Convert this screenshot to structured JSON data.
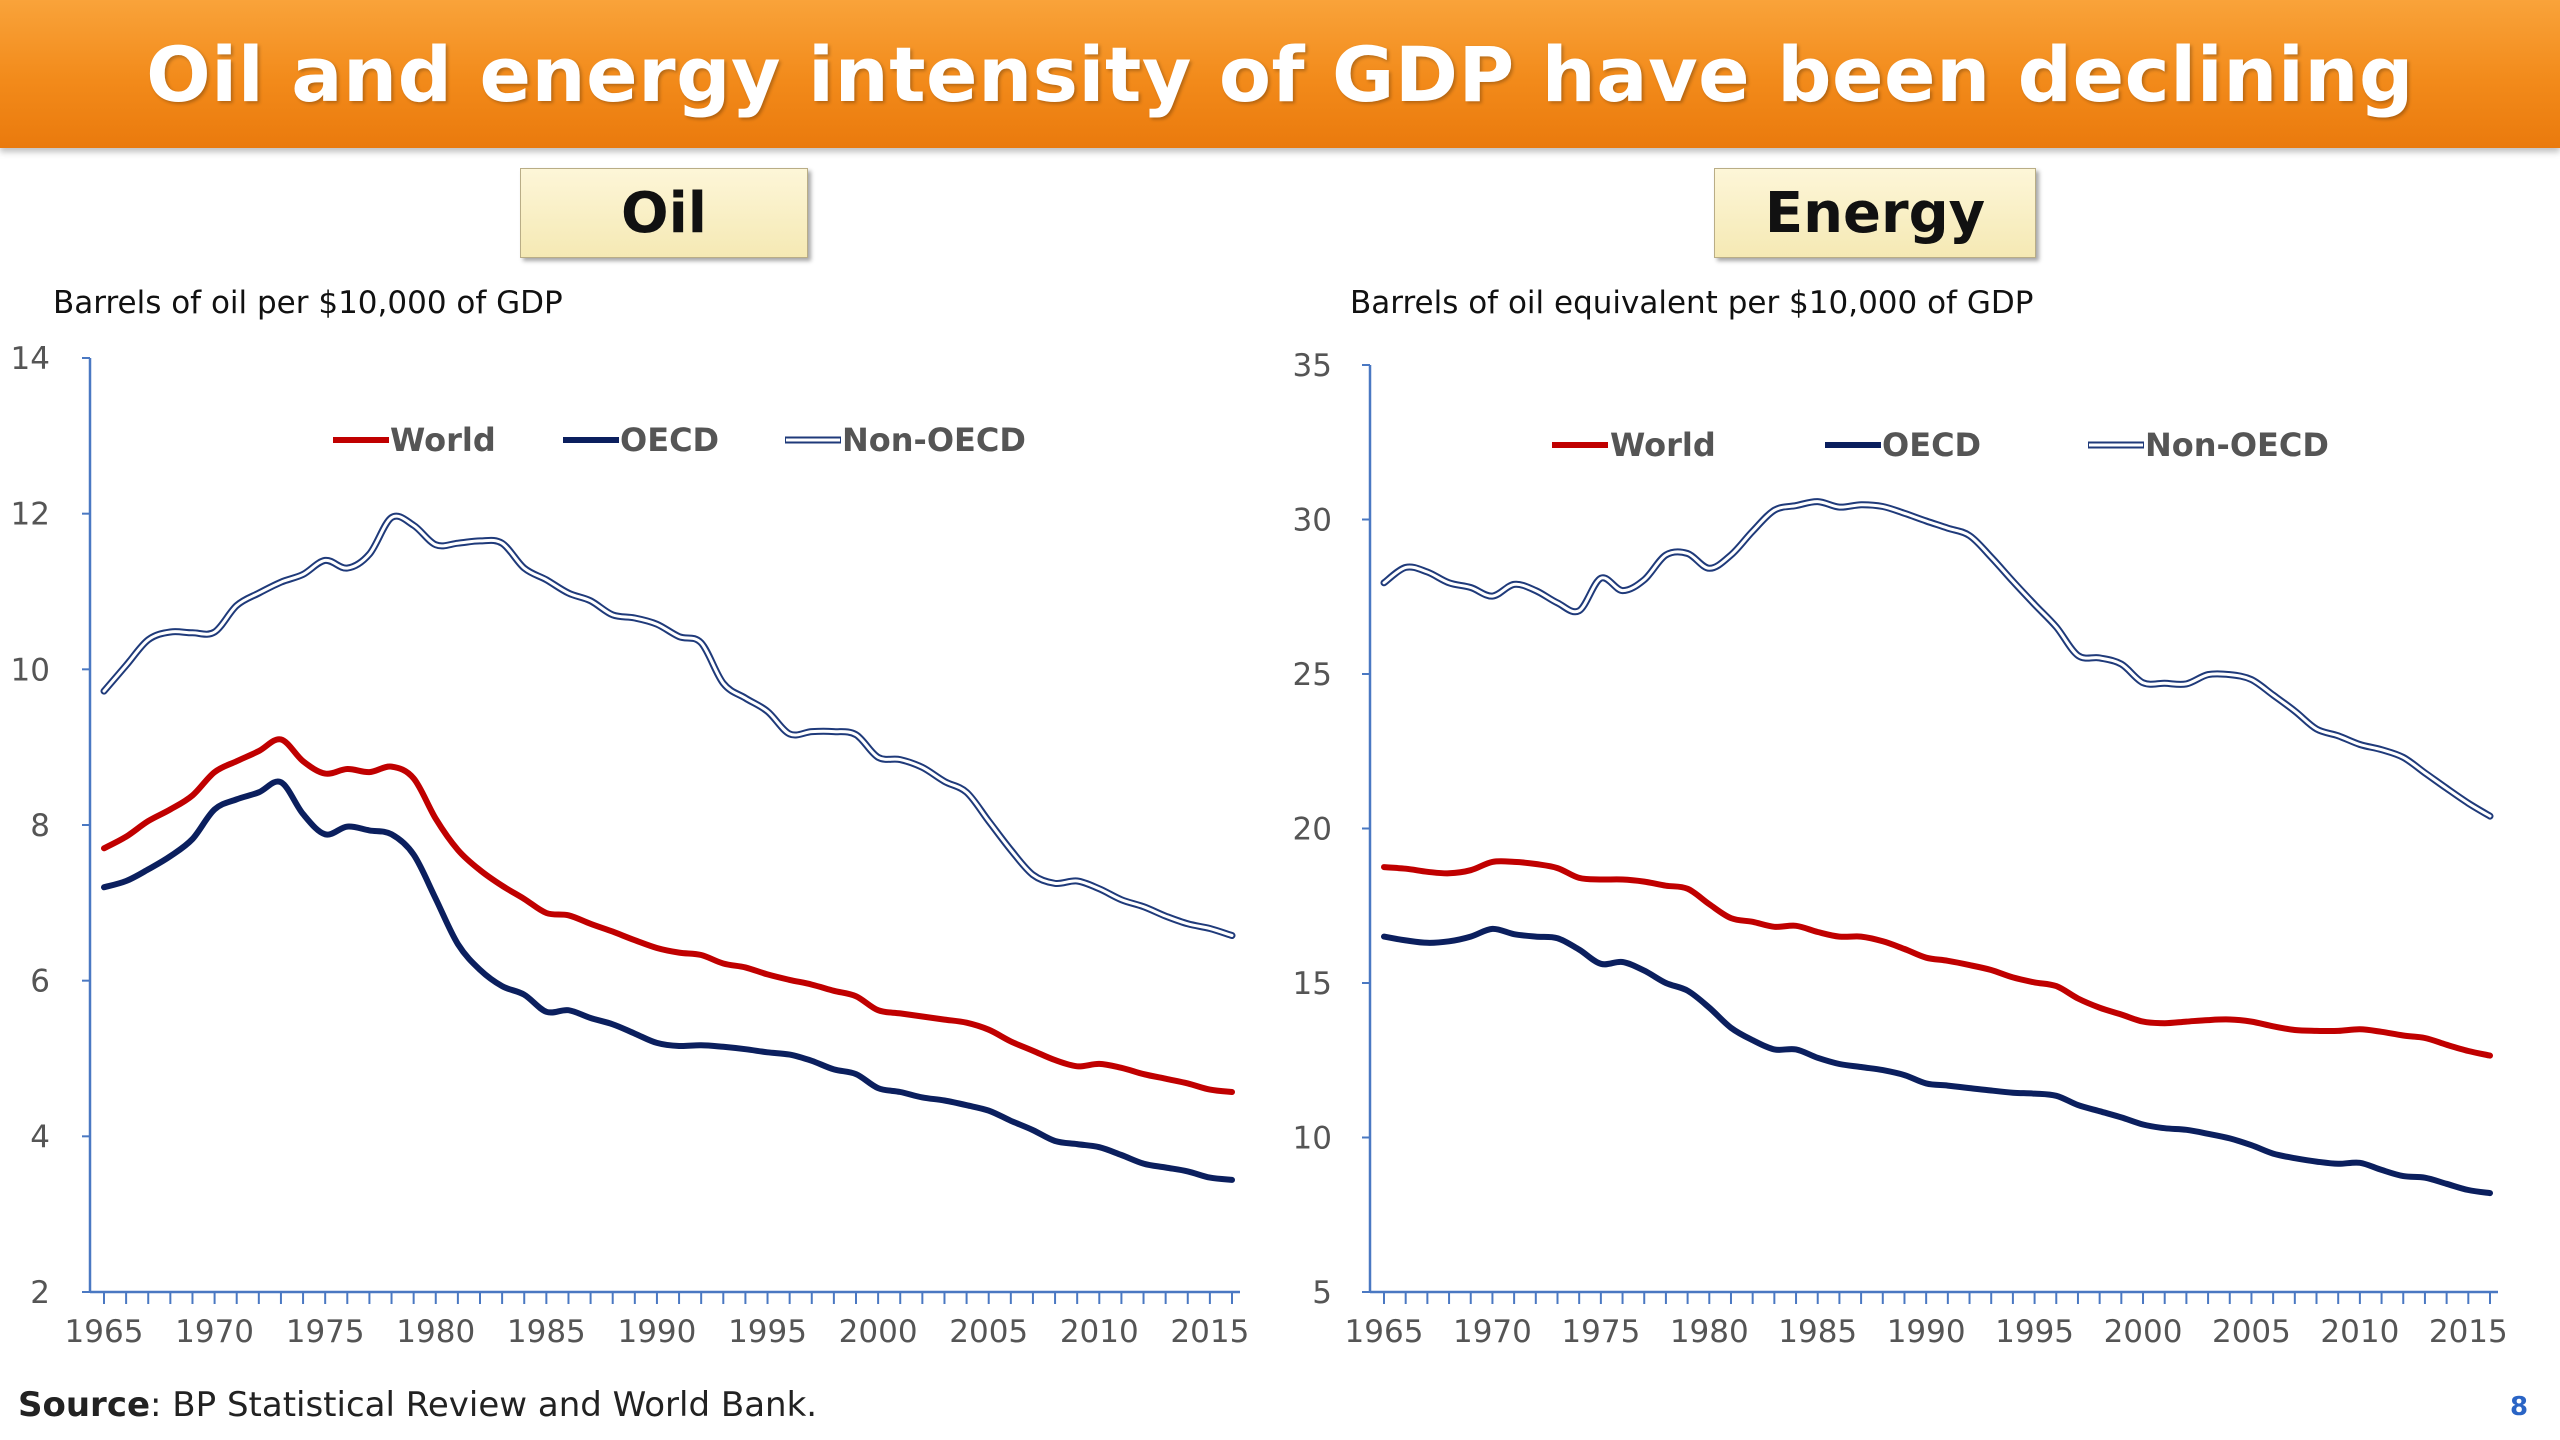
{
  "title": "Oil and energy intensity of GDP have been declining",
  "colors": {
    "banner": "#f28a1a",
    "world": "#c00000",
    "oecd": "#0b1f5e",
    "nonoecd": "#1f3a7a",
    "axis": "#4a78c2",
    "tick_text": "#555555"
  },
  "source": {
    "label": "Source",
    "text": ": BP Statistical Review and World Bank."
  },
  "page_number": "8",
  "chart_data": [
    {
      "type": "line",
      "panel_label": "Oil",
      "unit_label": "Barrels of oil per $10,000 of GDP",
      "ylim": [
        2,
        14
      ],
      "y_ticks": [
        "2",
        "4",
        "6",
        "8",
        "10",
        "12",
        "14"
      ],
      "x_start": 1965,
      "x_end": 2016,
      "x_ticks": [
        "1965",
        "1970",
        "1975",
        "1980",
        "1985",
        "1990",
        "1995",
        "2000",
        "2005",
        "2010",
        "2015"
      ],
      "legend_position": "top",
      "series": [
        {
          "name": "World",
          "key": "world",
          "values": [
            7.7,
            7.85,
            8.05,
            8.2,
            8.38,
            8.68,
            8.82,
            8.95,
            9.1,
            8.82,
            8.66,
            8.72,
            8.68,
            8.75,
            8.6,
            8.08,
            7.68,
            7.42,
            7.22,
            7.05,
            6.87,
            6.84,
            6.73,
            6.63,
            6.52,
            6.42,
            6.36,
            6.33,
            6.22,
            6.17,
            6.08,
            6.01,
            5.95,
            5.87,
            5.8,
            5.62,
            5.58,
            5.54,
            5.5,
            5.46,
            5.37,
            5.22,
            5.1,
            4.98,
            4.9,
            4.93,
            4.88,
            4.8,
            4.74,
            4.68,
            4.6,
            4.57
          ]
        },
        {
          "name": "OECD",
          "key": "oecd",
          "values": [
            7.2,
            7.28,
            7.43,
            7.6,
            7.82,
            8.2,
            8.33,
            8.42,
            8.55,
            8.14,
            7.88,
            7.98,
            7.93,
            7.88,
            7.62,
            7.05,
            6.47,
            6.14,
            5.93,
            5.82,
            5.6,
            5.62,
            5.52,
            5.44,
            5.32,
            5.2,
            5.16,
            5.17,
            5.15,
            5.12,
            5.08,
            5.05,
            4.97,
            4.86,
            4.8,
            4.62,
            4.57,
            4.5,
            4.46,
            4.4,
            4.33,
            4.2,
            4.08,
            3.94,
            3.9,
            3.86,
            3.76,
            3.65,
            3.6,
            3.55,
            3.47,
            3.44
          ]
        },
        {
          "name": "Non-OECD",
          "key": "nonoecd",
          "values": [
            9.72,
            10.05,
            10.38,
            10.48,
            10.47,
            10.48,
            10.82,
            10.98,
            11.12,
            11.22,
            11.4,
            11.3,
            11.48,
            11.95,
            11.85,
            11.6,
            11.62,
            11.65,
            11.62,
            11.3,
            11.15,
            10.98,
            10.88,
            10.7,
            10.66,
            10.58,
            10.42,
            10.34,
            9.82,
            9.63,
            9.46,
            9.17,
            9.2,
            9.2,
            9.16,
            8.87,
            8.84,
            8.74,
            8.56,
            8.42,
            8.05,
            7.68,
            7.36,
            7.25,
            7.28,
            7.18,
            7.04,
            6.95,
            6.83,
            6.73,
            6.67,
            6.58
          ]
        }
      ]
    },
    {
      "type": "line",
      "panel_label": "Energy",
      "unit_label": "Barrels of oil equivalent per $10,000 of GDP",
      "ylim": [
        5,
        35
      ],
      "y_ticks": [
        "5",
        "10",
        "15",
        "20",
        "25",
        "30",
        "35"
      ],
      "x_start": 1965,
      "x_end": 2016,
      "x_ticks": [
        "1965",
        "1970",
        "1975",
        "1980",
        "1985",
        "1990",
        "1995",
        "2000",
        "2005",
        "2010",
        "2015"
      ],
      "legend_position": "top",
      "series": [
        {
          "name": "World",
          "key": "world",
          "values": [
            18.75,
            18.7,
            18.6,
            18.55,
            18.65,
            18.92,
            18.92,
            18.85,
            18.72,
            18.4,
            18.35,
            18.35,
            18.28,
            18.15,
            18.05,
            17.55,
            17.1,
            16.98,
            16.82,
            16.85,
            16.65,
            16.5,
            16.5,
            16.35,
            16.1,
            15.82,
            15.72,
            15.58,
            15.42,
            15.18,
            15.02,
            14.9,
            14.5,
            14.2,
            13.98,
            13.75,
            13.7,
            13.75,
            13.8,
            13.82,
            13.75,
            13.6,
            13.48,
            13.45,
            13.45,
            13.5,
            13.42,
            13.3,
            13.22,
            13.0,
            12.8,
            12.65
          ]
        },
        {
          "name": "OECD",
          "key": "oecd",
          "values": [
            16.5,
            16.38,
            16.3,
            16.35,
            16.5,
            16.75,
            16.58,
            16.5,
            16.45,
            16.08,
            15.62,
            15.68,
            15.4,
            15.0,
            14.75,
            14.2,
            13.55,
            13.15,
            12.85,
            12.85,
            12.58,
            12.38,
            12.28,
            12.18,
            12.02,
            11.75,
            11.68,
            11.6,
            11.52,
            11.45,
            11.42,
            11.35,
            11.05,
            10.85,
            10.65,
            10.42,
            10.3,
            10.25,
            10.12,
            9.97,
            9.75,
            9.48,
            9.33,
            9.22,
            9.15,
            9.18,
            8.95,
            8.75,
            8.7,
            8.5,
            8.3,
            8.2
          ]
        },
        {
          "name": "Non-OECD",
          "key": "nonoecd",
          "values": [
            27.95,
            28.45,
            28.3,
            27.95,
            27.8,
            27.52,
            27.9,
            27.7,
            27.3,
            27.05,
            28.1,
            27.7,
            28.05,
            28.85,
            28.9,
            28.42,
            28.85,
            29.62,
            30.3,
            30.45,
            30.58,
            30.4,
            30.48,
            30.42,
            30.2,
            29.95,
            29.72,
            29.48,
            28.78,
            28.0,
            27.25,
            26.52,
            25.6,
            25.52,
            25.32,
            24.72,
            24.7,
            24.68,
            24.98,
            24.98,
            24.82,
            24.32,
            23.8,
            23.22,
            23.0,
            22.72,
            22.55,
            22.3,
            21.8,
            21.3,
            20.82,
            20.4
          ]
        }
      ]
    }
  ]
}
